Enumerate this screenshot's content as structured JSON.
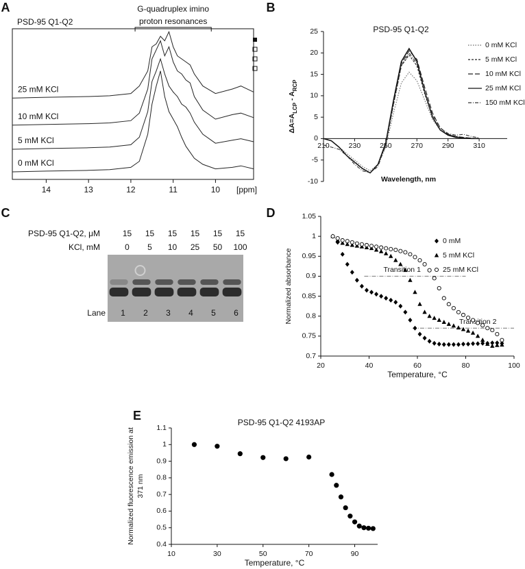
{
  "chart_data": [
    {
      "type": "spectra",
      "panel": "A",
      "title": "PSD-95 Q1-Q2",
      "bracket_text": [
        "G-quadruplex imino",
        "proton resonances"
      ],
      "bracket_x": [
        11.9,
        10.1
      ],
      "x": [
        14.8,
        14.0,
        13.0,
        12.5,
        12.0,
        11.8,
        11.6,
        11.5,
        11.4,
        11.3,
        11.2,
        11.1,
        11.0,
        10.9,
        10.8,
        10.7,
        10.6,
        10.5,
        10.3,
        10.0,
        9.6,
        9.4,
        9.1
      ],
      "xlim": [
        14.8,
        9.1
      ],
      "xticks": [
        14,
        13,
        12,
        11,
        10
      ],
      "xlabel": "[ppm]",
      "ylim": [
        0,
        100
      ],
      "series": [
        {
          "name": "25 mM KCl",
          "color": "#222222",
          "values": [
            54,
            54.5,
            55,
            55.5,
            57,
            62,
            72,
            88,
            90,
            95,
            92,
            98,
            88,
            82,
            80,
            78,
            76,
            70,
            62,
            57,
            60,
            62,
            58
          ]
        },
        {
          "name": "10 mM KCl",
          "color": "#222222",
          "values": [
            36,
            36.5,
            37,
            37.5,
            39,
            44,
            60,
            80,
            86,
            92,
            82,
            88,
            78,
            72,
            70,
            66,
            64,
            55,
            46,
            40,
            43,
            44,
            41
          ]
        },
        {
          "name": "5 mM KCl",
          "color": "#222222",
          "values": [
            20,
            20.5,
            21,
            21.5,
            23,
            28,
            45,
            65,
            72,
            80,
            70,
            62,
            58,
            55,
            50,
            48,
            44,
            38,
            30,
            24,
            26,
            27,
            25
          ]
        },
        {
          "name": "0 mM KCl",
          "color": "#222222",
          "values": [
            5,
            5.5,
            6,
            6.5,
            8,
            12,
            30,
            50,
            62,
            72,
            55,
            45,
            40,
            35,
            28,
            22,
            18,
            14,
            10,
            7,
            8,
            9,
            7
          ]
        }
      ]
    },
    {
      "type": "line",
      "panel": "B",
      "title": "PSD-95 Q1-Q2",
      "ylabel": [
        {
          "text": "ΔA=A"
        },
        {
          "text": "LCP",
          "sub": true
        },
        {
          "text": " - A"
        },
        {
          "text": "RCP",
          "sub": true
        }
      ],
      "xlabel": "Wavelength, nm",
      "x": [
        210,
        215,
        220,
        225,
        230,
        235,
        240,
        245,
        250,
        255,
        260,
        265,
        270,
        275,
        280,
        285,
        290,
        295,
        300,
        305,
        310
      ],
      "xlim": [
        210,
        328
      ],
      "xticks": [
        210,
        230,
        250,
        270,
        290,
        310
      ],
      "ylim": [
        -10,
        25
      ],
      "yticks": [
        -10,
        -5,
        0,
        5,
        10,
        15,
        20,
        25
      ],
      "series": [
        {
          "name": "0 mM KCl",
          "color": "#666666",
          "dash": "dotted",
          "values": [
            0,
            -0.5,
            -2,
            -3.5,
            -5,
            -6.5,
            -7.5,
            -6,
            -2,
            6,
            13,
            15.5,
            13.5,
            9,
            4.5,
            2,
            1,
            0.5,
            0.2,
            0.1,
            0
          ]
        },
        {
          "name": "5 mM KCl",
          "color": "#222222",
          "dash": "short",
          "values": [
            0,
            -0.5,
            -2,
            -4,
            -5.5,
            -7,
            -8,
            -6,
            -1.5,
            8,
            17,
            19.5,
            17,
            10.5,
            5,
            2,
            1,
            0.5,
            0.2,
            0,
            0
          ]
        },
        {
          "name": "10 mM KCl",
          "color": "#222222",
          "dash": "long",
          "values": [
            0,
            -0.5,
            -2,
            -4,
            -5.5,
            -7,
            -8,
            -6,
            -1,
            8.5,
            17.5,
            20.5,
            18.5,
            12,
            6,
            2.5,
            1,
            0.5,
            0.3,
            0.1,
            0
          ]
        },
        {
          "name": "25 mM KCl",
          "color": "#111111",
          "dash": "solid",
          "values": [
            0,
            -0.5,
            -2,
            -4,
            -5.5,
            -7,
            -8,
            -6,
            -1,
            9,
            18,
            21,
            18,
            11,
            5,
            2,
            0.8,
            0.3,
            0.1,
            0,
            0
          ]
        },
        {
          "name": "150 mM KCl",
          "color": "#333333",
          "dash": "dashdot",
          "values": [
            -1.5,
            -2,
            -2.5,
            -4,
            -6,
            -7.5,
            -8,
            -6.5,
            -1.5,
            8,
            17,
            20,
            17.5,
            11,
            5.5,
            2.5,
            1.2,
            0.8,
            1,
            0.5,
            0.2
          ]
        }
      ]
    },
    {
      "type": "gel",
      "panel": "C",
      "rows": [
        {
          "label": "PSD-95 Q1-Q2, μM",
          "values": [
            15,
            15,
            15,
            15,
            15,
            15
          ]
        },
        {
          "label": "KCl, mM",
          "values": [
            0,
            5,
            10,
            25,
            50,
            100
          ]
        }
      ],
      "lane_label": "Lane",
      "lanes": [
        1,
        2,
        3,
        4,
        5,
        6
      ]
    },
    {
      "type": "scatter",
      "panel": "D",
      "ylabel": "Normalized absorbance",
      "xlabel": "Temperature, °C",
      "x": [
        25,
        27,
        29,
        31,
        33,
        35,
        37,
        39,
        41,
        43,
        45,
        47,
        49,
        51,
        53,
        55,
        57,
        59,
        61,
        63,
        65,
        67,
        69,
        71,
        73,
        75,
        77,
        79,
        81,
        83,
        85,
        87,
        89,
        91,
        93,
        95
      ],
      "xlim": [
        20,
        100
      ],
      "xticks": [
        20,
        40,
        60,
        80,
        100
      ],
      "ylim": [
        0.7,
        1.05
      ],
      "yticks": [
        0.7,
        0.75,
        0.8,
        0.85,
        0.9,
        0.95,
        1,
        1.05
      ],
      "series": [
        {
          "name": "0 mM",
          "color": "#000000",
          "marker": "diamond",
          "values": [
            1.0,
            0.985,
            0.955,
            0.93,
            0.91,
            0.89,
            0.875,
            0.865,
            0.86,
            0.855,
            0.85,
            0.845,
            0.84,
            0.835,
            0.825,
            0.81,
            0.79,
            0.77,
            0.755,
            0.745,
            0.737,
            0.732,
            0.73,
            0.729,
            0.729,
            0.729,
            0.729,
            0.73,
            0.73,
            0.731,
            0.731,
            0.732,
            0.732,
            0.733,
            0.733,
            0.732
          ]
        },
        {
          "name": "5 mM KCl",
          "color": "#000000",
          "marker": "triangle",
          "values": [
            1.0,
            0.99,
            0.983,
            0.98,
            0.978,
            0.976,
            0.974,
            0.972,
            0.97,
            0.966,
            0.962,
            0.957,
            0.95,
            0.94,
            0.93,
            0.915,
            0.89,
            0.86,
            0.83,
            0.81,
            0.8,
            0.795,
            0.79,
            0.785,
            0.78,
            0.776,
            0.771,
            0.767,
            0.763,
            0.758,
            0.75,
            0.74,
            0.73,
            0.725,
            0.727,
            0.728
          ]
        },
        {
          "name": "25 mM KCl",
          "color": "#000000",
          "marker": "open-circle",
          "values": [
            1.0,
            0.995,
            0.99,
            0.988,
            0.985,
            0.982,
            0.98,
            0.978,
            0.976,
            0.974,
            0.972,
            0.97,
            0.968,
            0.966,
            0.963,
            0.96,
            0.955,
            0.948,
            0.94,
            0.93,
            0.915,
            0.895,
            0.87,
            0.845,
            0.83,
            0.82,
            0.81,
            0.803,
            0.796,
            0.79,
            0.783,
            0.777,
            0.77,
            0.765,
            0.755,
            0.74
          ]
        }
      ],
      "annotations": [
        {
          "text": "Transition 1",
          "y": 0.9,
          "x": [
            38,
            80
          ]
        },
        {
          "text": "Transition 2",
          "y": 0.77,
          "x": [
            58,
            100
          ]
        }
      ]
    },
    {
      "type": "scatter",
      "panel": "E",
      "title": "PSD-95 Q1-Q2 4193AP",
      "ylabel": [
        "Normalized fluorescence emission at",
        "371 nm"
      ],
      "xlabel": "Temperature, °C",
      "x": [
        20,
        30,
        40,
        50,
        60,
        70,
        80,
        82,
        84,
        86,
        88,
        90,
        92,
        94,
        96,
        98
      ],
      "xlim": [
        10,
        100
      ],
      "xticks": [
        10,
        30,
        50,
        70,
        90
      ],
      "ylim": [
        0.4,
        1.1
      ],
      "yticks": [
        0.4,
        0.5,
        0.6,
        0.7,
        0.8,
        0.9,
        1,
        1.1
      ],
      "series": [
        {
          "name": "4193AP",
          "color": "#000000",
          "marker": "circle",
          "values": [
            1.0,
            0.99,
            0.945,
            0.922,
            0.915,
            0.925,
            0.82,
            0.755,
            0.685,
            0.62,
            0.57,
            0.535,
            0.51,
            0.5,
            0.497,
            0.495
          ]
        }
      ]
    }
  ]
}
